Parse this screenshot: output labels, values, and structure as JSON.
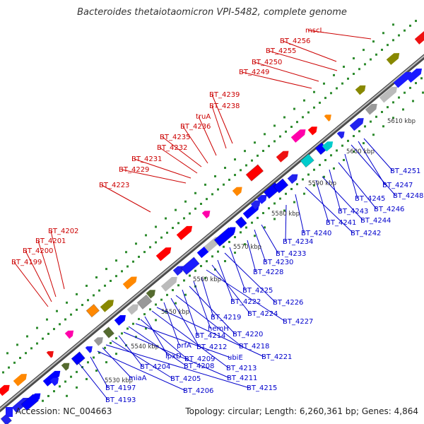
{
  "title": "Bacteroides thetaiotaomicron VPI-5482, complete genome",
  "footer": {
    "accession": "Accession: NC_004663",
    "topology": "Topology: circular; Length: 6,260,361 bp; Genes: 4,864"
  },
  "colors": {
    "upper_label": "#cc0000",
    "lower_label": "#0000cc",
    "backbone": "#888888",
    "tick": "#2e8b2e"
  },
  "ruler_labels": [
    "5530 kbp",
    "5540 kbp",
    "5550 kbp",
    "5560 kbp",
    "5570 kbp",
    "5580 kbp",
    "5590 kbp",
    "5600 kbp",
    "5610 kbp"
  ],
  "upper_genes": [
    "mscL",
    "BT_4256",
    "BT_4255",
    "BT_4250",
    "BT_4249",
    "BT_4239",
    "BT_4238",
    "truA",
    "BT_4236",
    "BT_4235",
    "BT_4232",
    "BT_4231",
    "BT_4229",
    "BT_4223",
    "BT_4202",
    "BT_4201",
    "BT_4200",
    "BT_4199"
  ],
  "lower_genes": [
    "BT_4251",
    "BT_4247",
    "BT_4248",
    "BT_4245",
    "BT_4246",
    "BT_4243",
    "BT_4244",
    "BT_4241",
    "BT_4242",
    "BT_4240",
    "BT_4234",
    "BT_4233",
    "BT_4230",
    "BT_4228",
    "BT_4225",
    "BT_4226",
    "BT_4222",
    "BT_4224",
    "BT_4227",
    "BT_4219",
    "hemH",
    "BT_4220",
    "BT_4214",
    "BT_4218",
    "BT_4212",
    "prfA",
    "BT_4221",
    "BT_4213",
    "lpxD",
    "BT_4209",
    "ubiE",
    "BT_4208",
    "BT_4211",
    "BT_4204",
    "BT_4205",
    "BT_4215",
    "miaA",
    "BT_4206",
    "BT_4197",
    "BT_4193"
  ]
}
